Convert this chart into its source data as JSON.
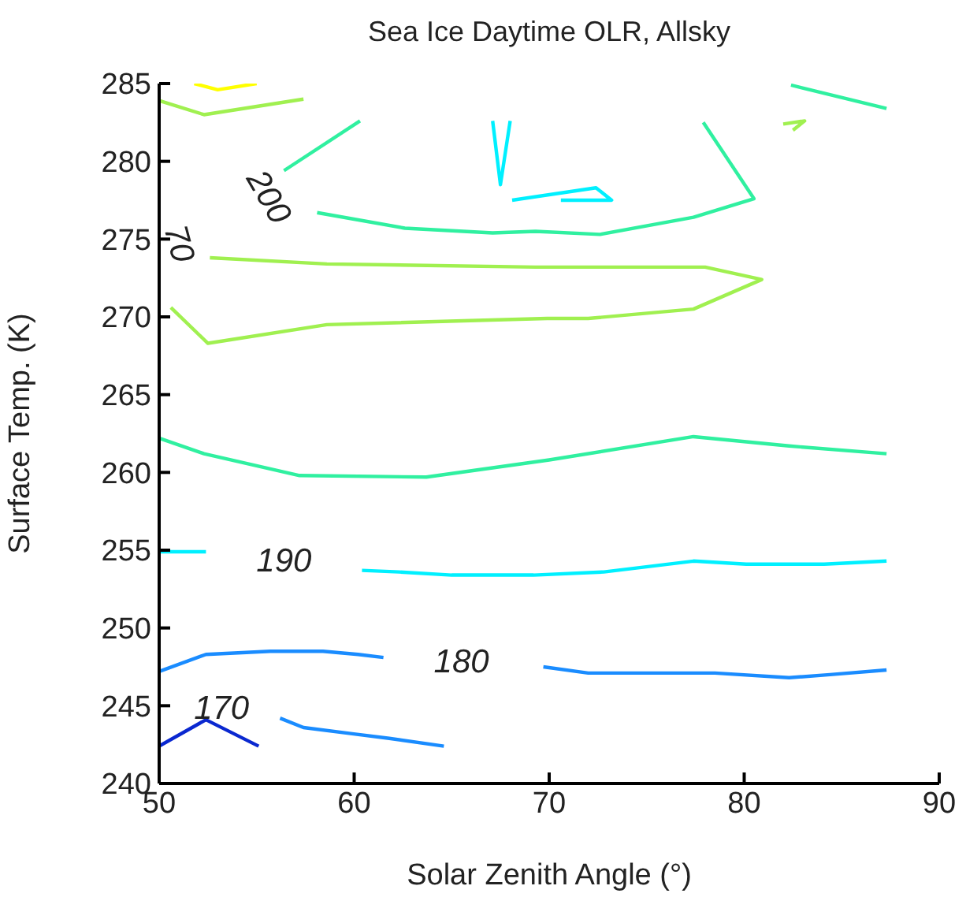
{
  "chart_data": {
    "type": "line",
    "title": "Sea Ice Daytime OLR, Allsky",
    "xlabel": "Solar Zenith Angle (°)",
    "ylabel": "Surface Temp. (K)",
    "xlim": [
      50,
      90
    ],
    "xticks": [
      50,
      60,
      70,
      80,
      90
    ],
    "ylim": [
      240,
      285
    ],
    "yticks": [
      240,
      245,
      250,
      255,
      260,
      265,
      270,
      275,
      280,
      285
    ],
    "grid": false,
    "legend": false,
    "series": [
      {
        "color": "#0a28d0",
        "x": [
          50,
          52.4,
          55.1
        ],
        "values": [
          242.4,
          244.1,
          242.4
        ]
      },
      {
        "color": "#1a8cff",
        "x": [
          50,
          52.4,
          55.7,
          58.4,
          60.2,
          61.5
        ],
        "values": [
          247.2,
          248.3,
          248.5,
          248.5,
          248.3,
          248.1
        ]
      },
      {
        "color": "#1a8cff",
        "x": [
          56.2,
          57.4,
          59.9,
          61.8,
          64.6
        ],
        "values": [
          244.2,
          243.6,
          243.2,
          242.9,
          242.4
        ]
      },
      {
        "color": "#1a8cff",
        "x": [
          69.7,
          72,
          78.5,
          82.3,
          84.4,
          87.3
        ],
        "values": [
          247.5,
          247.1,
          247.1,
          246.8,
          247,
          247.3
        ]
      },
      {
        "color": "#00f0ff",
        "x": [
          50,
          52.4
        ],
        "values": [
          254.9,
          254.9
        ]
      },
      {
        "color": "#00f0ff",
        "x": [
          60.4,
          62.3,
          65,
          69.2,
          72.8,
          77.4,
          80.1,
          84.1,
          87.3
        ],
        "values": [
          253.7,
          253.6,
          253.4,
          253.4,
          253.6,
          254.3,
          254.1,
          254.1,
          254.3
        ]
      },
      {
        "color": "#00f0ff",
        "x": [
          67.1,
          67.5,
          68
        ],
        "values": [
          282.6,
          278.5,
          282.6
        ]
      },
      {
        "color": "#00f0ff",
        "x": [
          68.1,
          72.4,
          73.2,
          70.6
        ],
        "values": [
          277.5,
          278.3,
          277.5,
          277.5
        ]
      },
      {
        "color": "#30f0a0",
        "x": [
          56.4,
          60.3
        ],
        "values": [
          279.4,
          282.6
        ]
      },
      {
        "color": "#30f0a0",
        "x": [
          58.1,
          62.6,
          67.1,
          69.3,
          72.6,
          77.4,
          80.5,
          77.9
        ],
        "values": [
          276.7,
          275.7,
          275.4,
          275.5,
          275.3,
          276.4,
          277.6,
          282.5
        ]
      },
      {
        "color": "#30f0a0",
        "x": [
          50,
          52.3,
          57.2,
          63.7,
          70,
          77.4,
          82.3,
          87.3
        ],
        "values": [
          262.2,
          261.2,
          259.8,
          259.7,
          260.8,
          262.3,
          261.7,
          261.2
        ]
      },
      {
        "color": "#30f0a0",
        "x": [
          82.4,
          87.3
        ],
        "values": [
          284.9,
          283.4
        ]
      },
      {
        "color": "#a0f050",
        "x": [
          50,
          52.3,
          57.4
        ],
        "values": [
          283.9,
          283,
          284
        ]
      },
      {
        "color": "#a0f050",
        "x": [
          52.6,
          58.6,
          69.3,
          78,
          80.9,
          77.4,
          72,
          69.9,
          58.6,
          52.5,
          50.6
        ],
        "values": [
          273.8,
          273.4,
          273.2,
          273.2,
          272.4,
          270.5,
          269.9,
          269.9,
          269.5,
          268.3,
          270.6
        ]
      },
      {
        "color": "#a0f050",
        "x": [
          82,
          83.1,
          82.5
        ],
        "values": [
          282.4,
          282.6,
          282
        ]
      },
      {
        "color": "#ffff00",
        "x": [
          51.8,
          53,
          55
        ],
        "values": [
          285,
          284.6,
          285
        ]
      }
    ],
    "annotations": [
      "200",
      "70",
      "190",
      "180",
      "170"
    ]
  }
}
